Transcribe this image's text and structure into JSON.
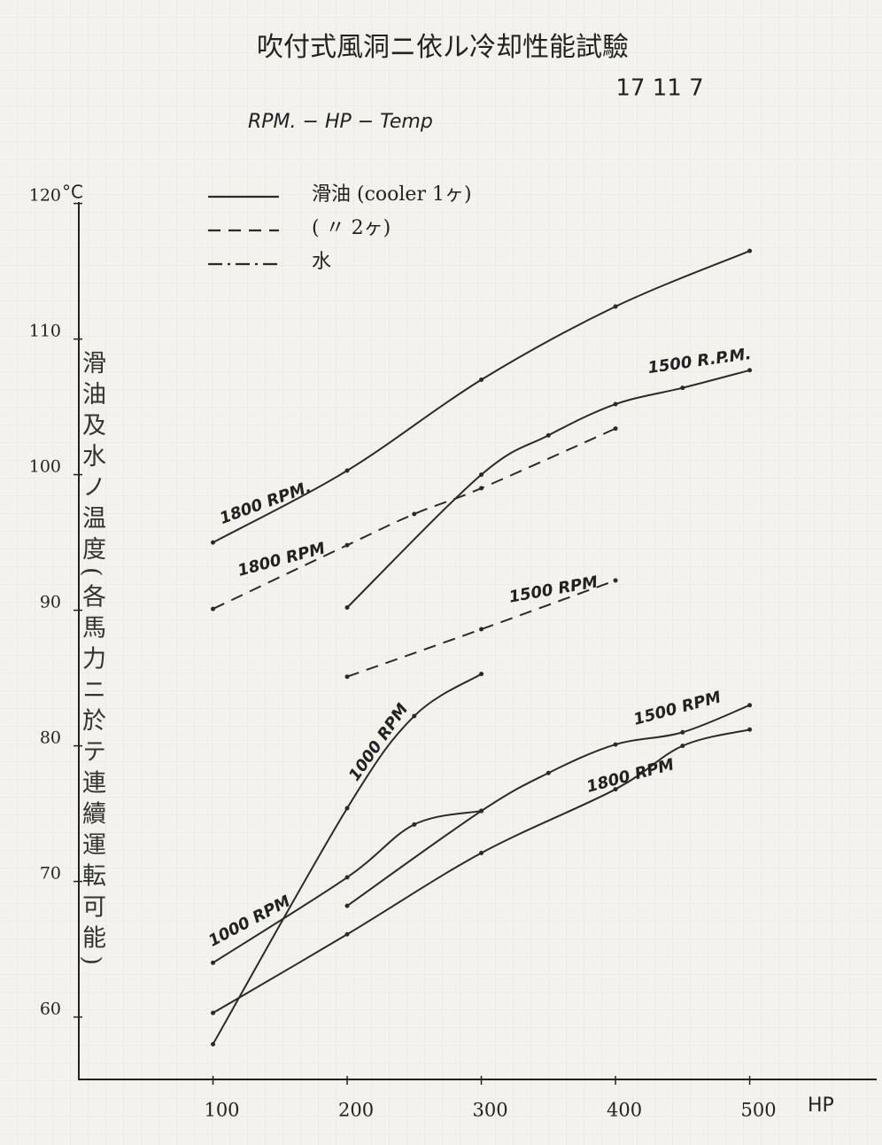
{
  "chart_data": {
    "type": "line",
    "title": "吹付式風洞ニ依ル冷却性能試驗",
    "date": "17 11 7",
    "subtitle": "RPM. − HP − Temp",
    "y_label": "滑油及水ノ温度(各馬力ニ於テ連續運転可能)",
    "y_unit": "°C",
    "x_label": "HP",
    "xlim": [
      0,
      594
    ],
    "ylim": [
      55.4,
      120.3
    ],
    "xticks": [
      100,
      200,
      300,
      400,
      500
    ],
    "yticks": [
      60,
      70,
      80,
      90,
      100,
      110,
      120
    ],
    "color": "#2a2a2a",
    "legend": [
      {
        "label": "滑油 (cooler 1ヶ)",
        "style": "solid"
      },
      {
        "label": "( 〃 2ヶ)",
        "style": "dashed"
      },
      {
        "label": "水",
        "style": "dashdot"
      }
    ],
    "series": [
      {
        "label": "1800 RPM.",
        "style": "solid",
        "x": [
          100,
          200,
          300,
          400,
          500
        ],
        "values": [
          95,
          100.3,
          107,
          112.4,
          116.5
        ]
      },
      {
        "label": "1500 R.P.M.",
        "style": "solid",
        "x": [
          200,
          300,
          350,
          400,
          450,
          500
        ],
        "values": [
          90.2,
          100,
          102.9,
          105.2,
          106.4,
          107.7
        ]
      },
      {
        "label": "1800 RPM",
        "style": "dashed",
        "x": [
          100,
          200,
          250,
          300,
          400
        ],
        "values": [
          90.1,
          94.8,
          97.1,
          99,
          103.4
        ]
      },
      {
        "label": "1500 RPM",
        "style": "dashed",
        "x": [
          200,
          300,
          400
        ],
        "values": [
          85.1,
          88.6,
          92.2
        ]
      },
      {
        "label": "1000 RPM",
        "style": "solid",
        "x": [
          100,
          200,
          250,
          300
        ],
        "values": [
          58,
          75.4,
          82.2,
          85.3
        ]
      },
      {
        "label": "1000 RPM",
        "style": "solid",
        "x": [
          100,
          200,
          250,
          300
        ],
        "values": [
          64,
          70.3,
          74.2,
          75.2
        ]
      },
      {
        "label": "1500 RPM",
        "style": "solid",
        "x": [
          200,
          300,
          350,
          400,
          450,
          500
        ],
        "values": [
          68.2,
          75.2,
          78,
          80.1,
          81,
          83
        ]
      },
      {
        "label": "1800 RPM",
        "style": "solid",
        "x": [
          100,
          200,
          300,
          400,
          450,
          500
        ],
        "values": [
          60.3,
          66.1,
          72.1,
          76.8,
          80,
          81.2
        ]
      }
    ]
  }
}
